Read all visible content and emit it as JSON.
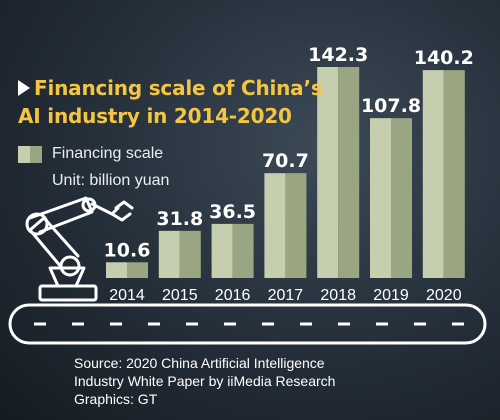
{
  "title": {
    "line1": "Financing scale of China’s",
    "line2": "AI industry in 2014-2020"
  },
  "legend": {
    "series_label": "Financing scale",
    "unit": "Unit: billion yuan"
  },
  "footer": {
    "source_line1": "Source: 2020 China Artificial Intelligence",
    "source_line2": "Industry White Paper by iiMedia Research",
    "graphics": "Graphics: GT"
  },
  "colors": {
    "bar_light": "#c5cfaf",
    "bar_dark": "#9aa682",
    "title": "#f4c542",
    "text": "#ffffff",
    "background": "#27323d"
  },
  "chart_data": {
    "type": "bar",
    "categories": [
      "2014",
      "2015",
      "2016",
      "2017",
      "2018",
      "2019",
      "2020"
    ],
    "series": [
      {
        "name": "Financing scale",
        "values": [
          10.6,
          31.8,
          36.5,
          70.7,
          142.3,
          107.8,
          140.2
        ]
      }
    ],
    "ylabel": "",
    "unit": "billion yuan",
    "ylim": [
      0,
      150
    ],
    "grid": false,
    "legend_position": "top-left"
  }
}
